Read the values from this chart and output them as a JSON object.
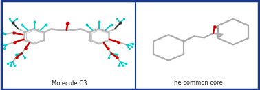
{
  "left_label": "Molecule C3",
  "right_label": "The common core",
  "border_color": "#1a3a8a",
  "border_width": 2.5,
  "bg_color": "#ffffff",
  "bond_color": "#b8b8b8",
  "bond_width": 1.8,
  "oxygen_color": "#cc0000",
  "hydrogen_color": "#00cccc",
  "carbon_color": "#909090",
  "label_fontsize": 6.0,
  "divider_color": "#1a3a8a",
  "skeletal_color": "#aaaaaa",
  "skeletal_lw": 1.6
}
